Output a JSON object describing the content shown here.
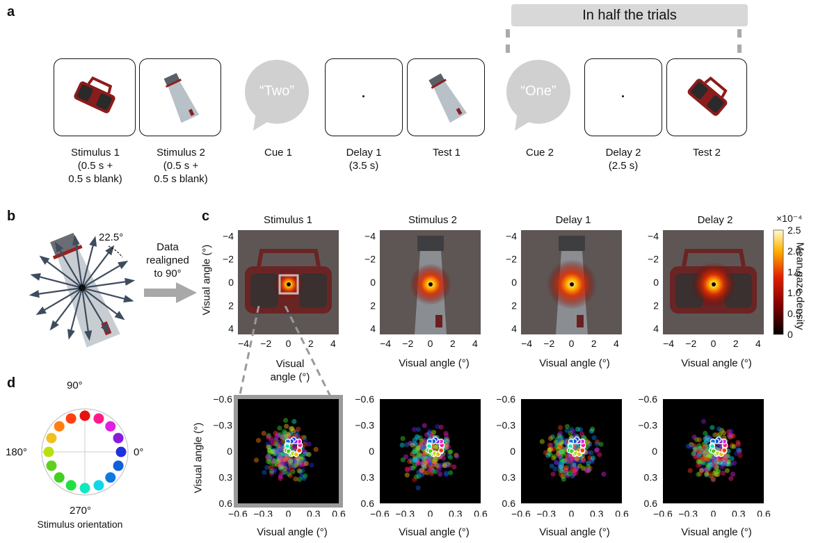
{
  "panel_a": {
    "label": "a",
    "banner": "In half the trials",
    "cue1_word": "“Two”",
    "cue2_word": "“One”",
    "captions": {
      "stimulus1": [
        "Stimulus 1",
        "(0.5 s +",
        "0.5 s blank)"
      ],
      "stimulus2": [
        "Stimulus 2",
        "(0.5 s +",
        "0.5 s blank)"
      ],
      "cue1": [
        "Cue 1"
      ],
      "delay1": [
        "Delay 1",
        "(3.5 s)"
      ],
      "test1": [
        "Test 1"
      ],
      "cue2": [
        "Cue 2"
      ],
      "delay2": [
        "Delay 2",
        "(2.5 s)"
      ],
      "test2": [
        "Test 2"
      ]
    }
  },
  "panel_b": {
    "label": "b",
    "angle": "22.5°",
    "arrow_text": [
      "Data",
      "realigned",
      "to 90°"
    ]
  },
  "panel_c": {
    "label": "c",
    "titles": [
      "Stimulus 1",
      "Stimulus 2",
      "Delay 1",
      "Delay 2"
    ],
    "top_ylabel": "Visual angle (°)",
    "top_xlabel": "Visual angle (°)",
    "first_xlabel": [
      "Visual",
      "angle (°)"
    ],
    "top_ticks": [
      "-4",
      "-2",
      "0",
      "2",
      "4"
    ],
    "bottom_ticks": [
      "-0.6",
      "-0.3",
      "0",
      "0.3",
      "0.6"
    ],
    "bottom_ylabel": "Visual angle (°)",
    "bottom_xlabel": "Visual angle (°)",
    "colorbar": {
      "exponent": "×10⁻⁴",
      "ticks": [
        "2.5",
        "2.0",
        "1.5",
        "1.0",
        "0.5",
        "0"
      ],
      "label": "Mean gaze density"
    }
  },
  "panel_d": {
    "label": "d",
    "angle_top": "90°",
    "angle_left": "180°",
    "angle_right": "0°",
    "angle_bottom": "270°",
    "caption": "Stimulus orientation",
    "colors": [
      "#e81010",
      "#ff1a8c",
      "#e020e0",
      "#8a1ae0",
      "#2030e0",
      "#1060d8",
      "#1078e0",
      "#10d8e8",
      "#10e8c0",
      "#20e040",
      "#40d020",
      "#60d020",
      "#b8e010",
      "#f0c020",
      "#ff8010",
      "#ff4010"
    ]
  },
  "chart_data": [
    {
      "type": "heatmap",
      "title": "Stimulus 1",
      "xlabel": "Visual angle (°)",
      "ylabel": "Visual angle (°)",
      "xlim": [
        -4.5,
        4.5
      ],
      "ylim": [
        4.5,
        -4.5
      ],
      "peak": [
        0,
        0
      ],
      "colorbar": {
        "label": "Mean gaze density",
        "range": [
          0,
          2.5
        ],
        "exponent": "×10⁻⁴"
      }
    },
    {
      "type": "heatmap",
      "title": "Stimulus 2",
      "xlabel": "Visual angle (°)",
      "ylim": [
        4.5,
        -4.5
      ],
      "xlim": [
        -4.5,
        4.5
      ],
      "peak": [
        0,
        0
      ]
    },
    {
      "type": "heatmap",
      "title": "Delay 1",
      "xlabel": "Visual angle (°)",
      "ylim": [
        4.5,
        -4.5
      ],
      "xlim": [
        -4.5,
        4.5
      ],
      "peak": [
        0,
        0
      ]
    },
    {
      "type": "heatmap",
      "title": "Delay 2",
      "xlabel": "Visual angle (°)",
      "ylim": [
        4.5,
        -4.5
      ],
      "xlim": [
        -4.5,
        4.5
      ],
      "peak": [
        0,
        0
      ]
    }
  ]
}
